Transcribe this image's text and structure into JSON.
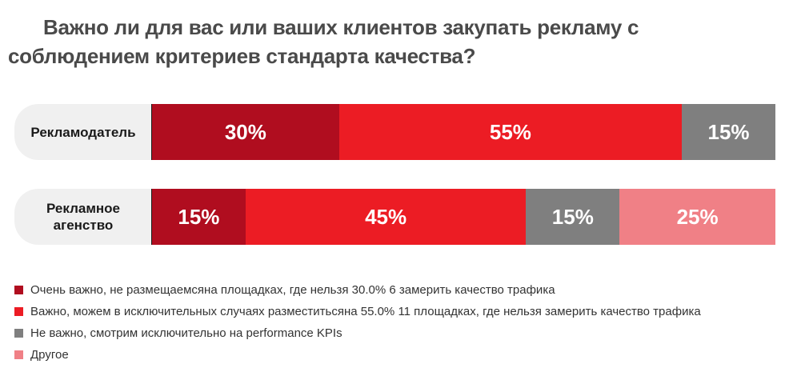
{
  "title": "Важно ли для вас или ваших клиентов закупать рекламу с соблюдением критериев стандарта качества?",
  "colors": {
    "very_important": "#b00d1f",
    "important_exceptions": "#ec1c24",
    "not_important": "#7f7f7f",
    "other": "#f08086"
  },
  "chart_data": {
    "type": "bar",
    "orientation": "horizontal",
    "stacked": true,
    "normalized_percent": true,
    "title": "Важно ли для вас или ваших клиентов закупать рекламу с соблюдением критериев стандарта качества?",
    "categories": [
      "Рекламодатель",
      "Рекламное агенство"
    ],
    "series": [
      {
        "name": "Очень важно, не размещаемсяна площадках, где нельзя 30.0% 6 замерить качество трафика",
        "color": "#b00d1f",
        "values": [
          30,
          15
        ],
        "labels": [
          "30%",
          "15%"
        ]
      },
      {
        "name": "Важно, можем в исключительных случаях разместитьсяна 55.0% 11 площадках, где нельзя замерить качество трафика",
        "color": "#ec1c24",
        "values": [
          55,
          45
        ],
        "labels": [
          "55%",
          "45%"
        ]
      },
      {
        "name": "Не важно, смотрим исключительно на performance KPIs",
        "color": "#7f7f7f",
        "values": [
          15,
          15
        ],
        "labels": [
          "15%",
          "15%"
        ]
      },
      {
        "name": "Другое",
        "color": "#f08086",
        "values": [
          0,
          25
        ],
        "labels": [
          "",
          "25%"
        ]
      }
    ],
    "xlim": [
      0,
      100
    ],
    "legend_position": "bottom-left",
    "grid": false
  }
}
